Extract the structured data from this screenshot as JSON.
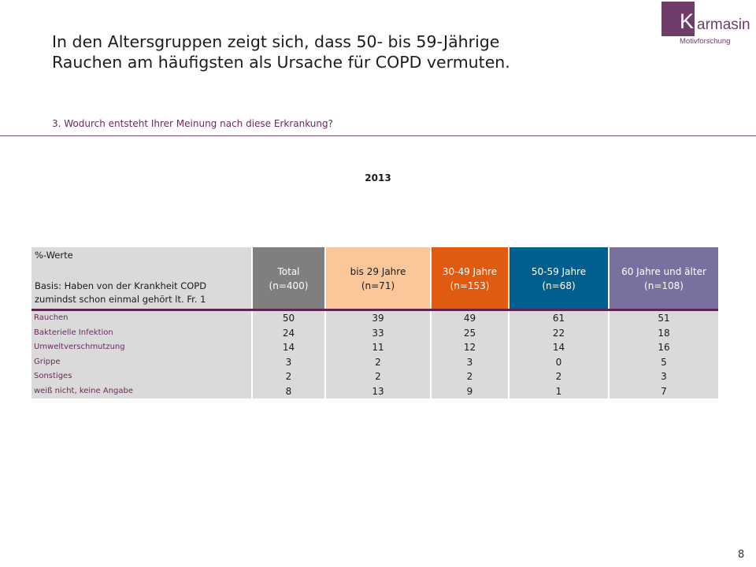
{
  "title_line1": "In den Altersgruppen zeigt sich, dass 50- bis 59-Jährige",
  "title_line2": "Rauchen am häufigsten als Ursache für COPD vermuten.",
  "subtitle": "3. Wodurch entsteht Ihrer Meinung nach diese Erkrankung?",
  "logo": {
    "k": "K",
    "rest": "armasin",
    "sub": "Motivforschung",
    "brand_color": "#6e3d6a"
  },
  "year": "2013",
  "page_number": "8",
  "table": {
    "header_label": {
      "line1": "%-Werte",
      "line2": "Basis: Haben von der Krankheit COPD",
      "line3": "zumindst schon einmal gehört lt. Fr. 1"
    },
    "columns": [
      {
        "label": "Total",
        "n": "(n=400)",
        "bg": "#7f7f7f",
        "fg": "#ffffff"
      },
      {
        "label": "bis 29 Jahre",
        "n": "(n=71)",
        "bg": "#fbc79a",
        "fg": "#1a1a1a"
      },
      {
        "label": "30-49 Jahre",
        "n": "(n=153)",
        "bg": "#e05a0f",
        "fg": "#ffffff"
      },
      {
        "label": "50-59 Jahre",
        "n": "(n=68)",
        "bg": "#005f8f",
        "fg": "#ffffff"
      },
      {
        "label": "60 Jahre und älter",
        "n": "(n=108)",
        "bg": "#7a709f",
        "fg": "#ffffff"
      }
    ],
    "rows": [
      {
        "label": "Rauchen",
        "values": [
          "50",
          "39",
          "49",
          "61",
          "51"
        ]
      },
      {
        "label": "Bakterielle Infektion",
        "values": [
          "24",
          "33",
          "25",
          "22",
          "18"
        ]
      },
      {
        "label": "Umweltverschmutzung",
        "values": [
          "14",
          "11",
          "12",
          "14",
          "16"
        ]
      },
      {
        "label": "Grippe",
        "values": [
          "3",
          "2",
          "3",
          "0",
          "5"
        ]
      },
      {
        "label": "Sonstiges",
        "values": [
          "2",
          "2",
          "2",
          "2",
          "3"
        ]
      },
      {
        "label": "weiß nicht, keine Angabe",
        "values": [
          "8",
          "13",
          "9",
          "1",
          "7"
        ]
      }
    ]
  }
}
